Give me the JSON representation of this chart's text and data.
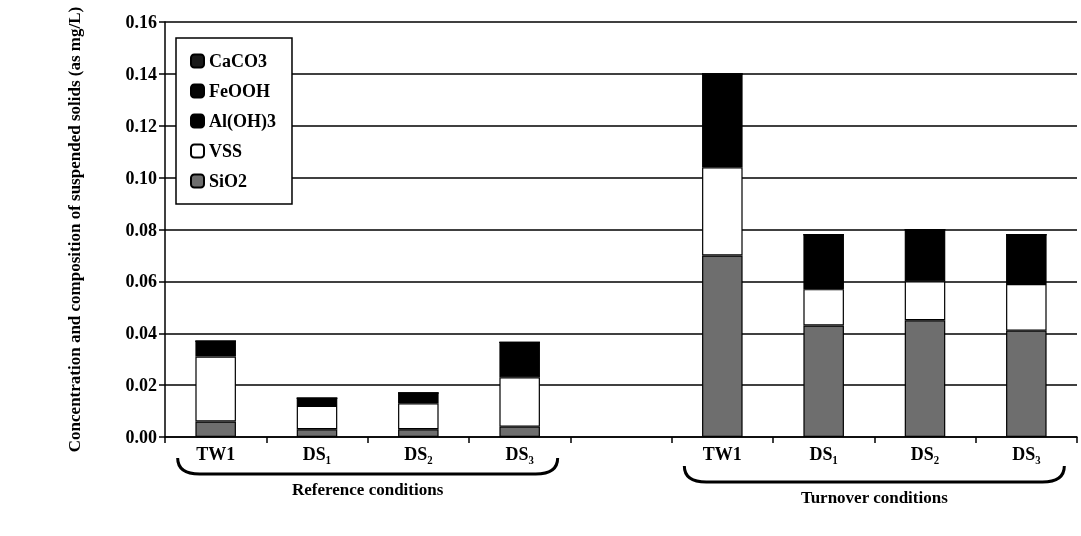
{
  "chart_data": {
    "type": "bar",
    "stacked": true,
    "ylabel": "Concentration and composition of suspended solids (as mg/L)",
    "categories": [
      "TW1",
      "DS₁",
      "DS₂",
      "DS₃",
      null,
      "TW1",
      "DS₁",
      "DS₂",
      "DS₃"
    ],
    "series": [
      {
        "name": "SiO2",
        "color": "#6e6e6e",
        "values": [
          0.006,
          0.003,
          0.003,
          0.004,
          null,
          0.07,
          0.043,
          0.045,
          0.041
        ]
      },
      {
        "name": "VSS",
        "color": "#ffffff",
        "values": [
          0.025,
          0.009,
          0.01,
          0.019,
          null,
          0.034,
          0.014,
          0.015,
          0.018
        ]
      },
      {
        "name": "Al(OH)3",
        "color": "#000000",
        "values": [
          0.006,
          0.003,
          0.004,
          0.0135,
          null,
          0.036,
          0.021,
          0.02,
          0.019
        ]
      },
      {
        "name": "FeOOH",
        "color": "#050505",
        "values": [
          0,
          0,
          0,
          0,
          null,
          0,
          0,
          0,
          0
        ]
      },
      {
        "name": "CaCO3",
        "color": "#1a1a1a",
        "values": [
          0,
          0,
          0,
          0,
          null,
          0,
          0,
          0,
          0
        ]
      }
    ],
    "ylim": [
      0,
      0.16
    ],
    "yticks": [
      {
        "value": 0,
        "label": "0.00"
      },
      {
        "value": 0.02,
        "label": "0.02"
      },
      {
        "value": 0.04,
        "label": "0.04"
      },
      {
        "value": 0.06,
        "label": "0.06"
      },
      {
        "value": 0.08,
        "label": "0.08"
      },
      {
        "value": 0.1,
        "label": "0.10"
      },
      {
        "value": 0.12,
        "label": "0.12"
      },
      {
        "value": 0.14,
        "label": "0.14"
      },
      {
        "value": 0.16,
        "label": "0.16"
      }
    ],
    "grid": "y",
    "legend": "top left",
    "annotations": [
      "Reference conditions",
      "Turnover conditions"
    ]
  }
}
